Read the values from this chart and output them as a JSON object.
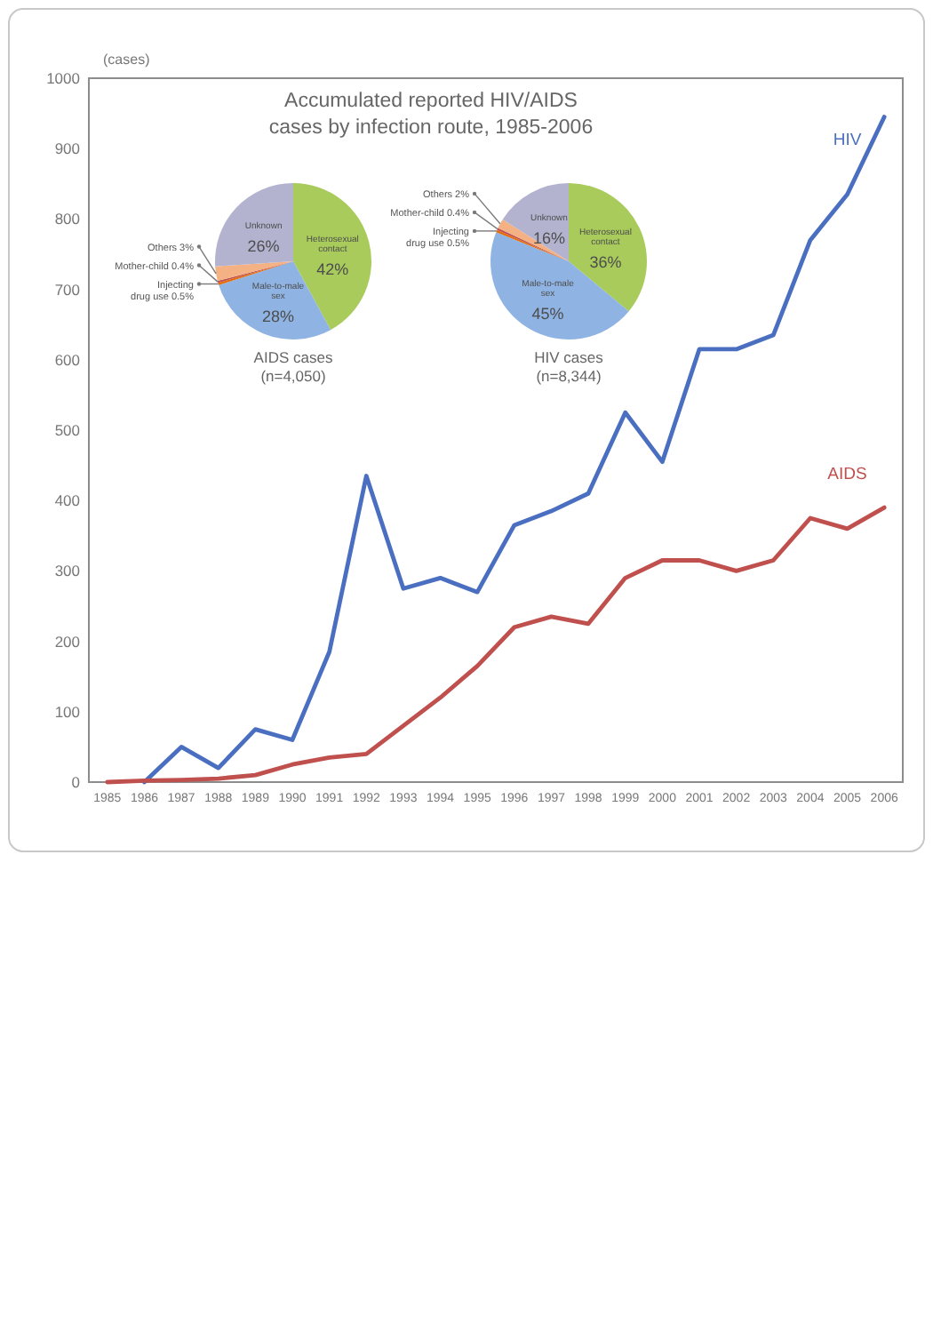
{
  "chart_data": [
    {
      "type": "line",
      "categories": [
        "1985",
        "1986",
        "1987",
        "1988",
        "1989",
        "1990",
        "1991",
        "1992",
        "1993",
        "1994",
        "1995",
        "1996",
        "1997",
        "1998",
        "1999",
        "2000",
        "2001",
        "2002",
        "2003",
        "2004",
        "2005",
        "2006"
      ],
      "series": [
        {
          "name": "HIV",
          "color": "#4a6fc1",
          "values": [
            null,
            0,
            50,
            20,
            75,
            60,
            185,
            435,
            275,
            290,
            270,
            365,
            385,
            410,
            525,
            455,
            615,
            615,
            635,
            770,
            835,
            945
          ]
        },
        {
          "name": "AIDS",
          "color": "#c0504d",
          "values": [
            0,
            2,
            3,
            5,
            10,
            25,
            35,
            40,
            80,
            120,
            165,
            220,
            235,
            225,
            290,
            315,
            315,
            300,
            315,
            375,
            360,
            390
          ]
        }
      ],
      "ylabel": "(cases)",
      "ylim": [
        0,
        1000
      ],
      "yticks": [
        0,
        100,
        200,
        300,
        400,
        500,
        600,
        700,
        800,
        900,
        1000
      ]
    },
    {
      "type": "pie",
      "title": "Accumulated reported HIV/AIDS cases by infection route, 1985-2006",
      "xlabel": "AIDS cases (n=4,050)",
      "categories": [
        "Heterosexual contact",
        "Male-to-male sex",
        "Injecting drug use",
        "Mother-child",
        "Others",
        "Unknown"
      ],
      "values": [
        42,
        28,
        0.5,
        0.4,
        3,
        26
      ],
      "value_labels": [
        "42%",
        "28%",
        "0.5%",
        "0.4%",
        "3%",
        "26%"
      ],
      "colors": [
        "#a8cb5c",
        "#8fb3e2",
        "#e46c0a",
        "#c0504d",
        "#f4b183",
        "#b3b3d0"
      ]
    },
    {
      "type": "pie",
      "xlabel": "HIV cases (n=8,344)",
      "categories": [
        "Heterosexual contact",
        "Male-to-male sex",
        "Injecting drug use",
        "Mother-child",
        "Others",
        "Unknown"
      ],
      "values": [
        36,
        45,
        0.5,
        0.4,
        2,
        16
      ],
      "value_labels": [
        "36%",
        "45%",
        "0.5%",
        "0.4%",
        "2%",
        "16%"
      ],
      "colors": [
        "#a8cb5c",
        "#8fb3e2",
        "#e46c0a",
        "#c0504d",
        "#f4b183",
        "#b3b3d0"
      ]
    }
  ]
}
